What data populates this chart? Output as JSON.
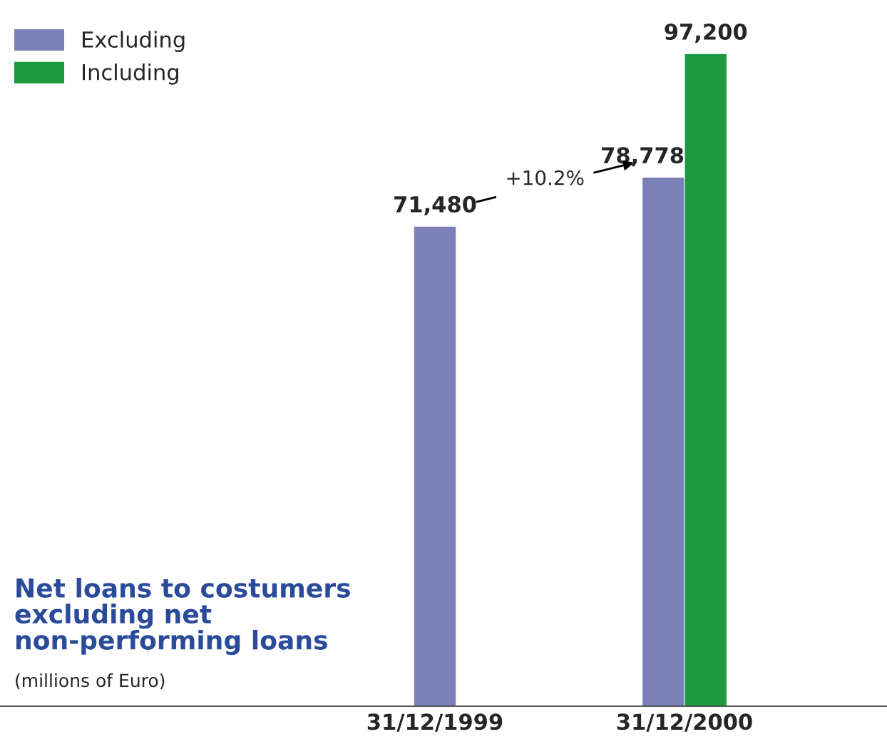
{
  "chart_data": {
    "type": "bar",
    "title": "Net loans to costumers\nexcluding net\nnon-performing loans",
    "subtitle": "(millions of Euro)",
    "categories": [
      "31/12/1999",
      "31/12/2000"
    ],
    "series": [
      {
        "name": "Excluding",
        "color": "#7b80b8",
        "values": [
          71480,
          78778
        ],
        "value_labels": [
          "71,480",
          "78,778"
        ]
      },
      {
        "name": "Including",
        "color": "#1a9a3c",
        "values": [
          null,
          97200
        ],
        "value_labels": [
          null,
          "97,200"
        ]
      }
    ],
    "legend": "top left",
    "annotations": [
      "+10.2%"
    ]
  }
}
